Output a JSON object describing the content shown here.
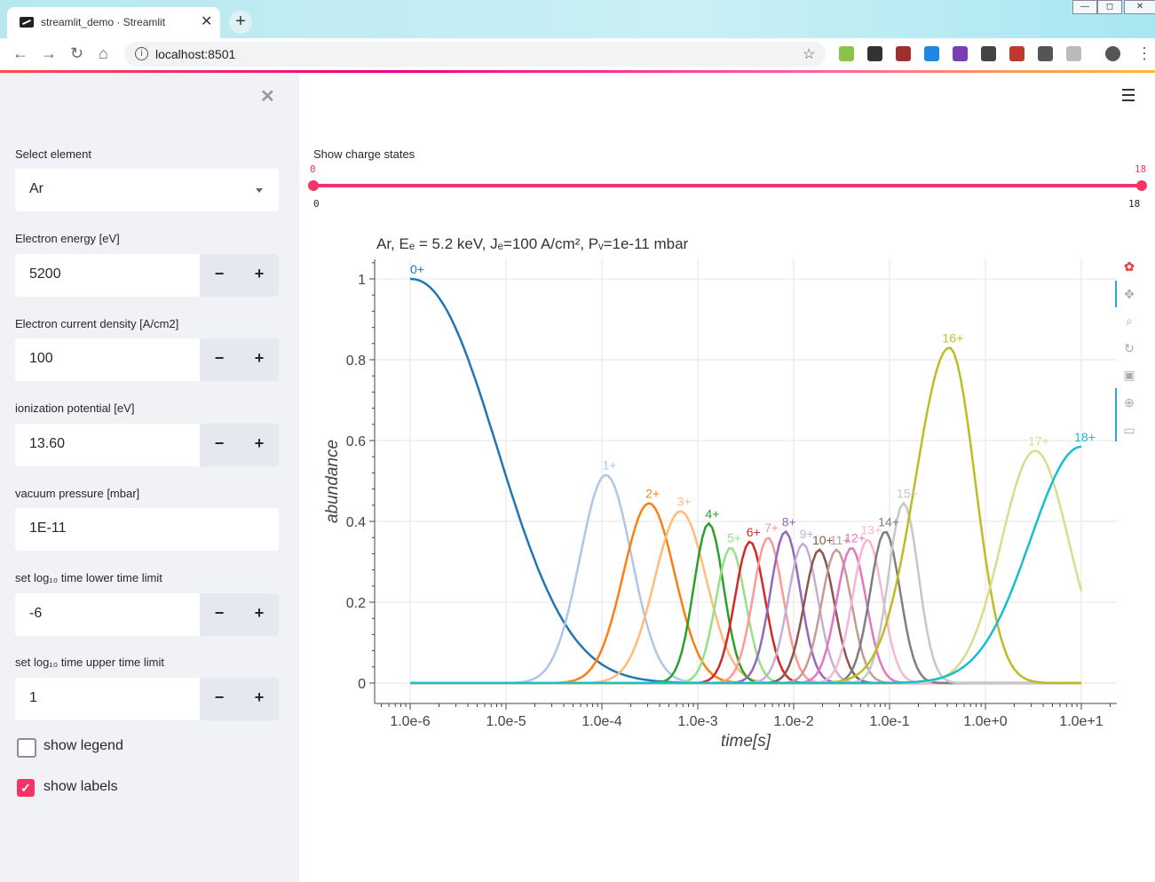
{
  "browser": {
    "tab_title": "streamlit_demo · Streamlit",
    "url": "localhost:8501"
  },
  "sidebar": {
    "select_element": {
      "label": "Select element",
      "value": "Ar"
    },
    "electron_energy": {
      "label": "Electron energy [eV]",
      "value": "5200"
    },
    "current_density": {
      "label": "Electron current density [A/cm2]",
      "value": "100"
    },
    "ionization": {
      "label": "ionization potential [eV]",
      "value": "13.60"
    },
    "vacuum": {
      "label": "vacuum pressure [mbar]",
      "value": "1E-11"
    },
    "tlow": {
      "label": "set log₁₀ time lower time limit",
      "value": "-6"
    },
    "thigh": {
      "label": "set log₁₀ time upper time limit",
      "value": "1"
    },
    "show_legend": {
      "label": "show legend",
      "checked": false
    },
    "show_labels": {
      "label": "show labels",
      "checked": true
    },
    "minus": "−",
    "plus": "+"
  },
  "slider": {
    "label": "Show charge states",
    "min": 0,
    "max": 18,
    "low": 0,
    "high": 18,
    "min_text": "0",
    "max_text": "18",
    "low_text": "0",
    "high_text": "18"
  },
  "chart_data": {
    "type": "line",
    "title": "Ar,  Eₑ = 5.2 keV, Jₑ=100 A/cm², Pᵥ=1e-11 mbar",
    "xlabel": "time[s]",
    "ylabel": "abundance",
    "xscale": "log",
    "xlim": [
      1e-06,
      10
    ],
    "ylim": [
      0,
      1
    ],
    "grid": true,
    "x_ticks": [
      "1.0e-6",
      "1.0e-5",
      "1.0e-4",
      "1.0e-3",
      "1.0e-2",
      "1.0e-1",
      "1.0e+0",
      "1.0e+1"
    ],
    "y_ticks": [
      "0",
      "0.2",
      "0.4",
      "0.6",
      "0.8",
      "1"
    ],
    "series": [
      {
        "label": "0+",
        "color": "#1f77b4",
        "peak_t": "1.0e-6",
        "peak": 1.0
      },
      {
        "label": "1+",
        "color": "#aec7e8",
        "peak_t": "1.1e-4",
        "peak": 0.515
      },
      {
        "label": "2+",
        "color": "#ff7f0e",
        "peak_t": "3.1e-4",
        "peak": 0.445
      },
      {
        "label": "3+",
        "color": "#ffbb78",
        "peak_t": "6.6e-4",
        "peak": 0.425
      },
      {
        "label": "4+",
        "color": "#2ca02c",
        "peak_t": "1.3e-3",
        "peak": 0.395
      },
      {
        "label": "5+",
        "color": "#98df8a",
        "peak_t": "2.2e-3",
        "peak": 0.335
      },
      {
        "label": "6+",
        "color": "#d62728",
        "peak_t": "3.5e-3",
        "peak": 0.35
      },
      {
        "label": "7+",
        "color": "#ff9896",
        "peak_t": "5.4e-3",
        "peak": 0.36
      },
      {
        "label": "8+",
        "color": "#9467bd",
        "peak_t": "8.2e-3",
        "peak": 0.375
      },
      {
        "label": "9+",
        "color": "#c5b0d5",
        "peak_t": "1.25e-2",
        "peak": 0.345
      },
      {
        "label": "10+",
        "color": "#8c564b",
        "peak_t": "1.85e-2",
        "peak": 0.33
      },
      {
        "label": "11+",
        "color": "#c49c94",
        "peak_t": "2.8e-2",
        "peak": 0.33
      },
      {
        "label": "12+",
        "color": "#e377c2",
        "peak_t": "4.0e-2",
        "peak": 0.335
      },
      {
        "label": "13+",
        "color": "#f7b6d2",
        "peak_t": "5.9e-2",
        "peak": 0.355
      },
      {
        "label": "14+",
        "color": "#7f7f7f",
        "peak_t": "9.0e-2",
        "peak": 0.375
      },
      {
        "label": "15+",
        "color": "#c7c7c7",
        "peak_t": "1.4e-1",
        "peak": 0.445
      },
      {
        "label": "16+",
        "color": "#bcbd22",
        "peak_t": "4.2e-1",
        "peak": 0.83
      },
      {
        "label": "17+",
        "color": "#dbdb8d",
        "peak_t": "3.3e+0",
        "peak": 0.575
      },
      {
        "label": "18+",
        "color": "#17becf",
        "peak_t": "1.0e+1",
        "peak": 0.585
      }
    ]
  }
}
